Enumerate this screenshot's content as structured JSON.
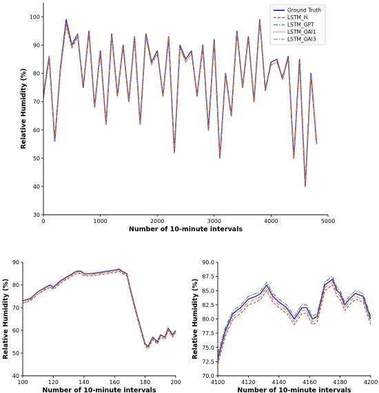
{
  "colors": {
    "ground_truth": "#2b2bd6",
    "lstm_h": "#c0392b",
    "lstm_gpt": "#2e8b2e",
    "lstm_oai1": "#8e44ad",
    "lstm_oai3": "#e07040"
  },
  "legend": {
    "placement": "top-right",
    "entries": [
      "Ground Truth",
      "LSTM_H",
      "LSTM_GPT",
      "LSTM_OAI1",
      "LSTM_OAI3"
    ]
  },
  "chart_data": [
    {
      "type": "line",
      "xlabel": "Number of 10-minute intervals",
      "ylabel": "Relative Humidity (%)",
      "xlim": [
        0,
        5000
      ],
      "ylim": [
        30,
        105
      ],
      "xticks": [
        "0",
        "1000",
        "2000",
        "3000",
        "4000",
        "5000"
      ],
      "yticks": [
        "30",
        "40",
        "50",
        "60",
        "70",
        "80",
        "90",
        "100"
      ],
      "grid": false,
      "legend_position": "top-right",
      "x": [
        0,
        100,
        200,
        300,
        400,
        500,
        600,
        700,
        800,
        900,
        1000,
        1100,
        1200,
        1300,
        1400,
        1500,
        1600,
        1700,
        1800,
        1900,
        2000,
        2100,
        2200,
        2300,
        2400,
        2500,
        2600,
        2700,
        2800,
        2900,
        3000,
        3100,
        3200,
        3300,
        3400,
        3500,
        3600,
        3700,
        3800,
        3900,
        4000,
        4100,
        4200,
        4300,
        4400,
        4500,
        4600,
        4700,
        4800
      ],
      "series": [
        {
          "name": "Ground Truth",
          "values": [
            72,
            86,
            56,
            82,
            99,
            90,
            94,
            75,
            95,
            68,
            88,
            62,
            94,
            72,
            90,
            70,
            93,
            62,
            94,
            84,
            88,
            72,
            93,
            52,
            90,
            85,
            88,
            72,
            90,
            60,
            92,
            50,
            80,
            65,
            95,
            75,
            93,
            70,
            99,
            74,
            84,
            85,
            78,
            86,
            50,
            85,
            40,
            80,
            55
          ]
        },
        {
          "name": "LSTM_H",
          "values": [
            71,
            85,
            57,
            81,
            97,
            89,
            93,
            76,
            94,
            69,
            87,
            63,
            93,
            73,
            89,
            71,
            92,
            63,
            93,
            83,
            87,
            73,
            92,
            53,
            89,
            84,
            87,
            73,
            89,
            61,
            91,
            51,
            79,
            66,
            94,
            76,
            92,
            71,
            98,
            75,
            83,
            84,
            79,
            85,
            51,
            84,
            41,
            79,
            56
          ]
        },
        {
          "name": "LSTM_GPT",
          "values": [
            72,
            86,
            56,
            82,
            98,
            90,
            94,
            75,
            95,
            68,
            88,
            62,
            94,
            72,
            90,
            70,
            93,
            62,
            94,
            84,
            88,
            72,
            93,
            52,
            90,
            85,
            88,
            72,
            90,
            60,
            92,
            50,
            80,
            65,
            95,
            75,
            93,
            70,
            99,
            74,
            84,
            85,
            78,
            86,
            50,
            85,
            40,
            80,
            55
          ]
        },
        {
          "name": "LSTM_OAI1",
          "values": [
            72,
            85,
            57,
            82,
            98,
            90,
            93,
            75,
            95,
            68,
            88,
            63,
            94,
            72,
            90,
            70,
            92,
            63,
            94,
            84,
            88,
            72,
            92,
            53,
            90,
            85,
            88,
            72,
            90,
            61,
            92,
            51,
            80,
            65,
            95,
            75,
            93,
            71,
            99,
            74,
            84,
            85,
            78,
            86,
            51,
            85,
            41,
            80,
            55
          ]
        },
        {
          "name": "LSTM_OAI3",
          "values": [
            71,
            86,
            56,
            81,
            98,
            89,
            94,
            76,
            94,
            68,
            87,
            62,
            93,
            72,
            89,
            70,
            93,
            62,
            93,
            83,
            87,
            72,
            93,
            52,
            89,
            84,
            87,
            72,
            89,
            60,
            91,
            50,
            79,
            65,
            94,
            75,
            92,
            70,
            98,
            74,
            83,
            84,
            78,
            85,
            50,
            84,
            40,
            79,
            55
          ]
        }
      ]
    },
    {
      "type": "line",
      "xlabel": "Number of 10-minute intervals",
      "ylabel": "Relative Humidity (%)",
      "xlim": [
        100,
        200
      ],
      "ylim": [
        40,
        90
      ],
      "xticks": [
        "100",
        "120",
        "140",
        "160",
        "180",
        "200"
      ],
      "yticks": [
        "40",
        "50",
        "60",
        "70",
        "80",
        "90"
      ],
      "grid": false,
      "x": [
        100,
        105,
        110,
        115,
        118,
        120,
        125,
        130,
        135,
        138,
        140,
        145,
        150,
        155,
        160,
        163,
        165,
        168,
        170,
        175,
        180,
        182,
        185,
        188,
        190,
        193,
        195,
        198,
        200
      ],
      "series": [
        {
          "name": "Ground Truth",
          "values": [
            73,
            74,
            77,
            79,
            80,
            79,
            82,
            84,
            86,
            86,
            85,
            85,
            85.5,
            86,
            86.5,
            87,
            86,
            85,
            79,
            66,
            54,
            53,
            57,
            55,
            58,
            57,
            61,
            58,
            60
          ]
        },
        {
          "name": "LSTM_H",
          "values": [
            72,
            73,
            76,
            78,
            79,
            78,
            81,
            83,
            85,
            85,
            84,
            84,
            84.5,
            85,
            85.5,
            86,
            85,
            84,
            78,
            65,
            53,
            52,
            56,
            54,
            57,
            56,
            60,
            57,
            59
          ]
        },
        {
          "name": "LSTM_GPT",
          "values": [
            73,
            74,
            77,
            79,
            80,
            79,
            82,
            84,
            86,
            86,
            85,
            85,
            85.5,
            86,
            86.5,
            87,
            86,
            85,
            79,
            66,
            54,
            53,
            57,
            55,
            58,
            57,
            61,
            58,
            60
          ]
        },
        {
          "name": "LSTM_OAI1",
          "values": [
            73,
            74,
            77,
            79,
            79.5,
            79,
            82,
            84,
            86,
            86,
            85,
            85,
            85.5,
            86,
            86.5,
            86.5,
            86,
            85,
            79,
            66,
            54,
            53,
            57,
            55,
            58,
            57,
            61,
            58,
            60
          ]
        },
        {
          "name": "LSTM_OAI3",
          "values": [
            72,
            73.5,
            76,
            78.5,
            79,
            78.5,
            81.5,
            83.5,
            85.5,
            85.5,
            84.5,
            84.5,
            85,
            85.5,
            86,
            86.5,
            85.5,
            84.5,
            78.5,
            65.5,
            53.5,
            52.5,
            56.5,
            54.5,
            57.5,
            56.5,
            60.5,
            57.5,
            59.5
          ]
        }
      ]
    },
    {
      "type": "line",
      "xlabel": "Number of 10-minute intervals",
      "ylabel": "Relative Humidity (%)",
      "xlim": [
        4100,
        4200
      ],
      "ylim": [
        70.0,
        90.0
      ],
      "xticks": [
        "4100",
        "4120",
        "4140",
        "4160",
        "4180",
        "4200"
      ],
      "yticks": [
        "70.0",
        "72.5",
        "75.0",
        "77.5",
        "80.0",
        "82.5",
        "85.0",
        "87.5",
        "90.0"
      ],
      "grid": false,
      "x": [
        4100,
        4105,
        4110,
        4115,
        4120,
        4125,
        4128,
        4132,
        4136,
        4140,
        4145,
        4150,
        4155,
        4158,
        4162,
        4165,
        4170,
        4175,
        4178,
        4180,
        4183,
        4186,
        4190,
        4195,
        4200
      ],
      "series": [
        {
          "name": "Ground Truth",
          "values": [
            73,
            78,
            81,
            82,
            83.5,
            84,
            84.5,
            86,
            84,
            83,
            82,
            80,
            82,
            82,
            80,
            80.5,
            86,
            87,
            85,
            84.5,
            82.5,
            83.5,
            84.5,
            84,
            80
          ]
        },
        {
          "name": "LSTM_H",
          "values": [
            72,
            77,
            80,
            81,
            82.5,
            83,
            83.5,
            85,
            83,
            82,
            81,
            79,
            81,
            81,
            79,
            79.5,
            85,
            86,
            84,
            83.5,
            81.5,
            82.5,
            83.5,
            83,
            79
          ]
        },
        {
          "name": "LSTM_GPT",
          "values": [
            74,
            78.5,
            81.5,
            82.5,
            84,
            84.5,
            85,
            86.5,
            84.5,
            83.5,
            82.5,
            80.5,
            82.5,
            82.5,
            80.5,
            81,
            86.5,
            87.5,
            85.5,
            85,
            83,
            84,
            85,
            84.5,
            80.5
          ]
        },
        {
          "name": "LSTM_OAI1",
          "values": [
            73.5,
            78,
            81,
            82,
            83.5,
            84,
            84.5,
            86,
            84,
            83,
            82,
            80,
            82,
            82,
            80,
            80.5,
            86,
            87,
            85,
            84.5,
            82.5,
            83.5,
            84.5,
            84,
            80
          ]
        },
        {
          "name": "LSTM_OAI3",
          "values": [
            72.5,
            77.5,
            80.5,
            81.5,
            83,
            83.5,
            84,
            85.5,
            83.5,
            82.5,
            81.5,
            79.5,
            81.5,
            81.5,
            79.5,
            80,
            85.5,
            86.5,
            84.5,
            84,
            82,
            83,
            84,
            83.5,
            79.5
          ]
        }
      ]
    }
  ]
}
